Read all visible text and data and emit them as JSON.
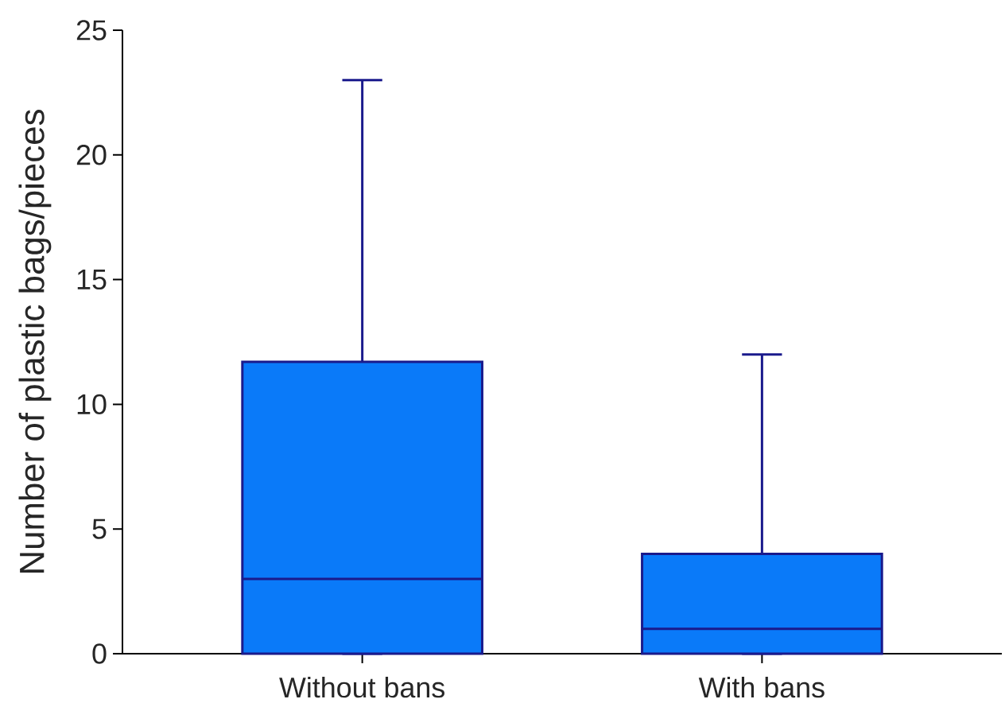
{
  "chart_data": {
    "type": "box",
    "ylabel": "Number of plastic bags/pieces",
    "categories": [
      "Without bans",
      "With bans"
    ],
    "boxes": [
      {
        "low": 0,
        "q1": 0,
        "median": 3,
        "q3": 11.7,
        "high": 23
      },
      {
        "low": 0,
        "q1": 0,
        "median": 1,
        "q3": 4,
        "high": 12
      }
    ],
    "color": "#0a7af9",
    "ylim": [
      0,
      25
    ],
    "yticks": [
      0,
      5,
      10,
      15,
      20,
      25
    ]
  }
}
